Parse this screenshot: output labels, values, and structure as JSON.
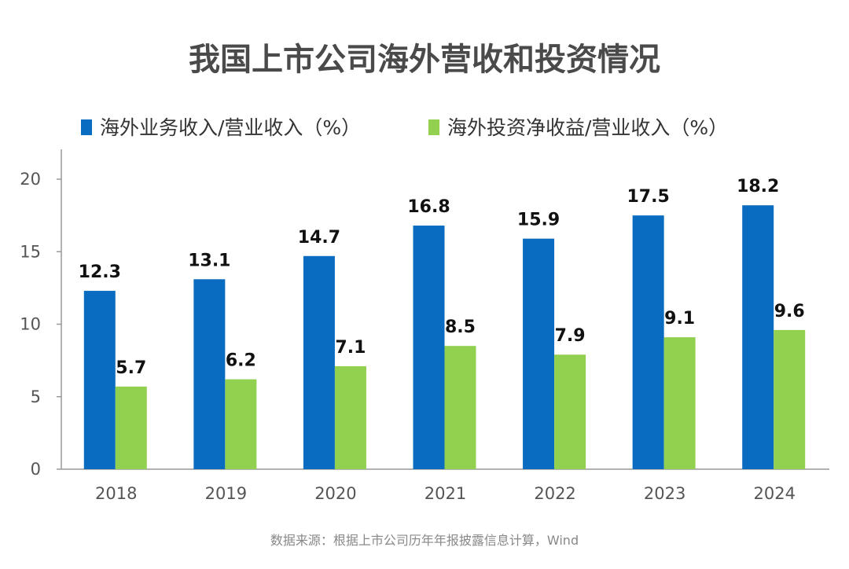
{
  "chart_data": {
    "type": "bar",
    "title": "我国上市公司海外营收和投资情况",
    "categories": [
      "2018",
      "2019",
      "2020",
      "2021",
      "2022",
      "2023",
      "2024"
    ],
    "series": [
      {
        "name": "海外业务收入/营业收入（%）",
        "color": "#0a6cc0",
        "values": [
          12.3,
          13.1,
          14.7,
          16.8,
          15.9,
          17.5,
          18.2
        ]
      },
      {
        "name": "海外投资净收益/营业收入（%）",
        "color": "#92d050",
        "values": [
          5.7,
          6.2,
          7.1,
          8.5,
          7.9,
          9.1,
          9.6
        ]
      }
    ],
    "ylim": [
      0,
      20
    ],
    "yticks": [
      0,
      5,
      10,
      15,
      20
    ],
    "xlabel": "",
    "ylabel": "",
    "grid": false,
    "legend": "top",
    "source": "数据来源：根据上市公司历年年报披露信息计算，Wind"
  }
}
